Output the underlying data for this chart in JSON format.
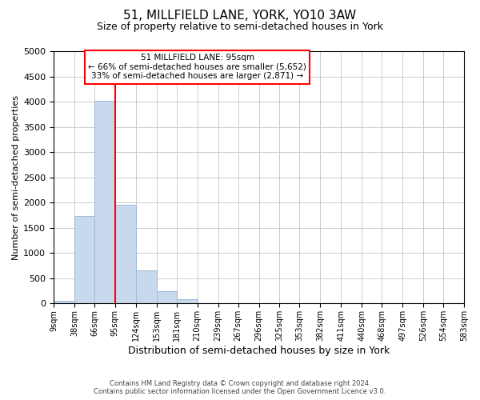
{
  "title": "51, MILLFIELD LANE, YORK, YO10 3AW",
  "subtitle": "Size of property relative to semi-detached houses in York",
  "xlabel": "Distribution of semi-detached houses by size in York",
  "ylabel": "Number of semi-detached properties",
  "bar_edges": [
    9,
    38,
    66,
    95,
    124,
    153,
    181,
    210,
    239,
    267,
    296,
    325,
    353,
    382,
    411,
    440,
    468,
    497,
    526,
    554,
    583
  ],
  "bar_heights": [
    50,
    1730,
    4020,
    1950,
    650,
    240,
    90,
    0,
    0,
    0,
    0,
    0,
    0,
    0,
    0,
    0,
    0,
    0,
    0,
    0
  ],
  "bar_color": "#c9d9ed",
  "bar_edge_color": "#a0b8d8",
  "property_line_x": 95,
  "property_line_color": "red",
  "annotation_title": "51 MILLFIELD LANE: 95sqm",
  "annotation_line1": "← 66% of semi-detached houses are smaller (5,652)",
  "annotation_line2": "33% of semi-detached houses are larger (2,871) →",
  "annotation_box_color": "white",
  "annotation_box_edge_color": "red",
  "ylim": [
    0,
    5000
  ],
  "yticks": [
    0,
    500,
    1000,
    1500,
    2000,
    2500,
    3000,
    3500,
    4000,
    4500,
    5000
  ],
  "grid_color": "#cccccc",
  "footer_line1": "Contains HM Land Registry data © Crown copyright and database right 2024.",
  "footer_line2": "Contains public sector information licensed under the Open Government Licence v3.0.",
  "bg_color": "#ffffff",
  "tick_labels": [
    "9sqm",
    "38sqm",
    "66sqm",
    "95sqm",
    "124sqm",
    "153sqm",
    "181sqm",
    "210sqm",
    "239sqm",
    "267sqm",
    "296sqm",
    "325sqm",
    "353sqm",
    "382sqm",
    "411sqm",
    "440sqm",
    "468sqm",
    "497sqm",
    "526sqm",
    "554sqm",
    "583sqm"
  ]
}
